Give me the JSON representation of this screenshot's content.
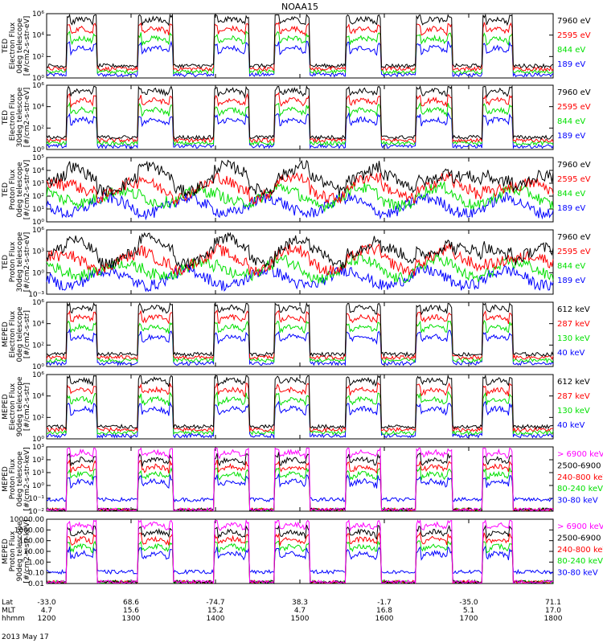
{
  "title": "NOAA15",
  "date": "2013 May 17",
  "colors": {
    "black": "#000000",
    "red": "#ff0000",
    "green": "#00e000",
    "blue": "#0000ff",
    "magenta": "#ff00ff"
  },
  "bottom_axis": {
    "row_labels": [
      "Lat",
      "MLT",
      "hhmm"
    ],
    "ticks": [
      {
        "lat": "-33.0",
        "mlt": "4.7",
        "hhmm": "1200"
      },
      {
        "lat": "68.6",
        "mlt": "15.6",
        "hhmm": "1300"
      },
      {
        "lat": "-74.7",
        "mlt": "15.2",
        "hhmm": "1400"
      },
      {
        "lat": "38.3",
        "mlt": "4.7",
        "hhmm": "1500"
      },
      {
        "lat": "-1.7",
        "mlt": "16.8",
        "hhmm": "1600"
      },
      {
        "lat": "-35.0",
        "mlt": "5.1",
        "hhmm": "1700"
      },
      {
        "lat": "71.1",
        "mlt": "17.0",
        "hhmm": "1800"
      }
    ]
  },
  "chart_data": [
    {
      "type": "line",
      "instrument": "TED",
      "ylabel": [
        "TED",
        "Electron Flux",
        "0deg telescope",
        "[#/cm2-s-str-eV]"
      ],
      "ylim": [
        1,
        1000000.0
      ],
      "scale": "log",
      "y_ticks": [
        "10⁰",
        "10²",
        "10⁴",
        "10⁶"
      ],
      "x": [
        "1200",
        "1300",
        "1400",
        "1500",
        "1600",
        "1700",
        "1800"
      ],
      "series": [
        {
          "name": "7960 eV",
          "color": "#000000"
        },
        {
          "name": "2595 eV",
          "color": "#ff0000"
        },
        {
          "name": "844 eV",
          "color": "#00e000"
        },
        {
          "name": "189 eV",
          "color": "#0000ff"
        }
      ]
    },
    {
      "type": "line",
      "instrument": "TED",
      "ylabel": [
        "TED",
        "Electron Flux",
        "30deg telescope",
        "[#/cm2-s-str-eV]"
      ],
      "ylim": [
        1,
        1000000.0
      ],
      "scale": "log",
      "y_ticks": [
        "10⁰",
        "10²",
        "10⁴",
        "10⁶"
      ],
      "x": [
        "1200",
        "1300",
        "1400",
        "1500",
        "1600",
        "1700",
        "1800"
      ],
      "series": [
        {
          "name": "7960 eV",
          "color": "#000000"
        },
        {
          "name": "2595 eV",
          "color": "#ff0000"
        },
        {
          "name": "844 eV",
          "color": "#00e000"
        },
        {
          "name": "189 eV",
          "color": "#0000ff"
        }
      ]
    },
    {
      "type": "line",
      "instrument": "TED",
      "ylabel": [
        "TED",
        "Proton Flux",
        "0deg telescope",
        "[#/cm2-s-str-eV]"
      ],
      "ylim": [
        1,
        100000.0
      ],
      "scale": "log",
      "y_ticks": [
        "10⁰",
        "10¹",
        "10²",
        "10³",
        "10⁴",
        "10⁵"
      ],
      "x": [
        "1200",
        "1300",
        "1400",
        "1500",
        "1600",
        "1700",
        "1800"
      ],
      "series": [
        {
          "name": "7960 eV",
          "color": "#000000"
        },
        {
          "name": "2595 eV",
          "color": "#ff0000"
        },
        {
          "name": "844 eV",
          "color": "#00e000"
        },
        {
          "name": "189 eV",
          "color": "#0000ff"
        }
      ]
    },
    {
      "type": "line",
      "instrument": "TED",
      "ylabel": [
        "TED",
        "Proton Flux",
        "30deg telescope",
        "[#/cm2-s-str-eV]"
      ],
      "ylim": [
        0.001,
        1000000.0
      ],
      "scale": "log",
      "y_ticks": [
        "10⁻³",
        "10⁰",
        "10³",
        "10⁶"
      ],
      "x": [
        "1200",
        "1300",
        "1400",
        "1500",
        "1600",
        "1700",
        "1800"
      ],
      "series": [
        {
          "name": "7960 eV",
          "color": "#000000"
        },
        {
          "name": "2595 eV",
          "color": "#ff0000"
        },
        {
          "name": "844 eV",
          "color": "#00e000"
        },
        {
          "name": "189 eV",
          "color": "#0000ff"
        }
      ]
    },
    {
      "type": "line",
      "instrument": "MEPED",
      "ylabel": [
        "MEPED",
        "Electron Flux",
        "0deg telescope",
        "[#/cm2-s-str]"
      ],
      "ylim": [
        1,
        1000000.0
      ],
      "scale": "log",
      "y_ticks": [
        "10⁰",
        "10²",
        "10⁴",
        "10⁶"
      ],
      "x": [
        "1200",
        "1300",
        "1400",
        "1500",
        "1600",
        "1700",
        "1800"
      ],
      "series": [
        {
          "name": "612 keV",
          "color": "#000000"
        },
        {
          "name": "287 keV",
          "color": "#ff0000"
        },
        {
          "name": "130 keV",
          "color": "#00e000"
        },
        {
          "name": "40 keV",
          "color": "#0000ff"
        }
      ]
    },
    {
      "type": "line",
      "instrument": "MEPED",
      "ylabel": [
        "MEPED",
        "Electron Flux",
        "90deg telescope",
        "[#/cm2-s-str]"
      ],
      "ylim": [
        1,
        1000000.0
      ],
      "scale": "log",
      "y_ticks": [
        "10⁰",
        "10²",
        "10⁴",
        "10⁶"
      ],
      "x": [
        "1200",
        "1300",
        "1400",
        "1500",
        "1600",
        "1700",
        "1800"
      ],
      "series": [
        {
          "name": "612 keV",
          "color": "#000000"
        },
        {
          "name": "287 keV",
          "color": "#ff0000"
        },
        {
          "name": "130 keV",
          "color": "#00e000"
        },
        {
          "name": "40 keV",
          "color": "#0000ff"
        }
      ]
    },
    {
      "type": "line",
      "instrument": "MEPED",
      "ylabel": [
        "MEPED",
        "Proton Flux",
        "0deg telescope",
        "[#/cm2-s-str-keV]"
      ],
      "ylim": [
        0.01,
        1000.0
      ],
      "scale": "log",
      "y_ticks": [
        "10⁻²",
        "10⁻¹",
        "10⁰",
        "10¹",
        "10²",
        "10³"
      ],
      "x": [
        "1200",
        "1300",
        "1400",
        "1500",
        "1600",
        "1700",
        "1800"
      ],
      "series": [
        {
          "name": "> 6900 keV",
          "color": "#ff00ff"
        },
        {
          "name": "2500-6900",
          "color": "#000000"
        },
        {
          "name": "240-800 keV",
          "color": "#ff0000"
        },
        {
          "name": "80-240 keV",
          "color": "#00e000"
        },
        {
          "name": "30-80 keV",
          "color": "#0000ff"
        }
      ]
    },
    {
      "type": "line",
      "instrument": "MEPED",
      "ylabel": [
        "MEPED",
        "Proton Flux",
        "90deg telescope",
        "[#/cm2-s-str-keV]"
      ],
      "ylim": [
        0.01,
        10000.0
      ],
      "scale": "log",
      "y_ticks": [
        "0.01",
        "0.10",
        "1.00",
        "10.00",
        "100.00",
        "1000.00",
        "10000.00"
      ],
      "x": [
        "1200",
        "1300",
        "1400",
        "1500",
        "1600",
        "1700",
        "1800"
      ],
      "series": [
        {
          "name": "> 6900 keV",
          "color": "#ff00ff"
        },
        {
          "name": "2500-6900",
          "color": "#000000"
        },
        {
          "name": "240-800 keV",
          "color": "#ff0000"
        },
        {
          "name": "80-240 keV",
          "color": "#00e000"
        },
        {
          "name": "30-80 keV",
          "color": "#0000ff"
        }
      ]
    }
  ]
}
